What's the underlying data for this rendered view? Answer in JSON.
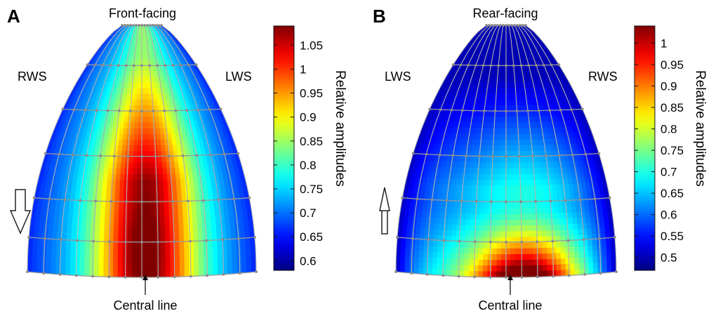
{
  "chart_data": [
    {
      "type": "heatmap",
      "panel": "A",
      "title": "Front-facing",
      "left_label": "RWS",
      "right_label": "LWS",
      "bottom_label": "Central line",
      "colorbar_label": "Relative amplitudes",
      "colorbar_range": [
        0.58,
        1.09
      ],
      "colorbar_ticks": [
        "0.6",
        "0.65",
        "0.7",
        "0.75",
        "0.8",
        "0.85",
        "0.9",
        "0.95",
        "1",
        "1.05"
      ],
      "arrow_direction": "down",
      "field": {
        "u_center": 0.52,
        "v_band_center": 0.58,
        "peak_low": 1.08,
        "edge_low": 0.7,
        "top_value": 0.72,
        "side_value": 0.66
      }
    },
    {
      "type": "heatmap",
      "panel": "B",
      "title": "Rear-facing",
      "left_label": "LWS",
      "right_label": "RWS",
      "bottom_label": "Central line",
      "colorbar_label": "Relative amplitudes",
      "colorbar_range": [
        0.47,
        1.04
      ],
      "colorbar_ticks": [
        "0.5",
        "0.55",
        "0.6",
        "0.65",
        "0.7",
        "0.75",
        "0.8",
        "0.85",
        "0.9",
        "0.95",
        "1"
      ],
      "arrow_direction": "up",
      "field": {
        "u_center": 0.58,
        "bottom_peak": 1.02,
        "mid_value": 0.7,
        "top_value": 0.5,
        "side_value": 0.5
      }
    }
  ]
}
